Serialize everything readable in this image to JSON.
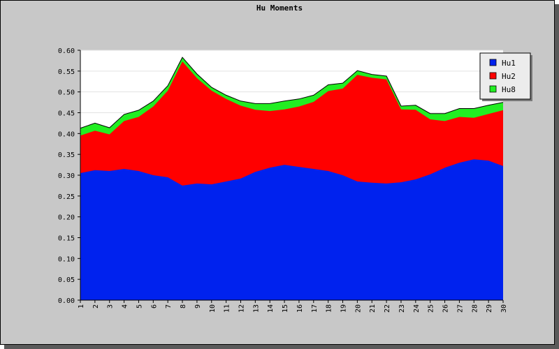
{
  "chart_data": {
    "type": "area",
    "stacked": true,
    "title": "Hu Moments",
    "xlabel": "",
    "ylabel": "",
    "x": [
      1,
      2,
      3,
      4,
      5,
      6,
      7,
      8,
      9,
      10,
      11,
      12,
      13,
      14,
      15,
      16,
      17,
      18,
      19,
      20,
      21,
      22,
      23,
      24,
      25,
      26,
      27,
      28,
      29,
      30
    ],
    "ylim": [
      0,
      0.6
    ],
    "yticks": [
      "0.00",
      "0.05",
      "0.10",
      "0.15",
      "0.20",
      "0.25",
      "0.30",
      "0.35",
      "0.40",
      "0.45",
      "0.50",
      "0.55",
      "0.60"
    ],
    "grid": true,
    "legend_position": "top-right",
    "series": [
      {
        "name": "Hu1",
        "color": "#0022ee",
        "values": [
          0.305,
          0.312,
          0.31,
          0.315,
          0.31,
          0.3,
          0.295,
          0.275,
          0.28,
          0.278,
          0.285,
          0.292,
          0.308,
          0.318,
          0.325,
          0.32,
          0.315,
          0.31,
          0.3,
          0.285,
          0.282,
          0.28,
          0.283,
          0.29,
          0.302,
          0.318,
          0.33,
          0.338,
          0.335,
          0.322
        ]
      },
      {
        "name": "Hu2",
        "color": "#ff0000",
        "values": [
          0.09,
          0.095,
          0.088,
          0.115,
          0.13,
          0.165,
          0.208,
          0.298,
          0.253,
          0.225,
          0.198,
          0.175,
          0.149,
          0.136,
          0.133,
          0.145,
          0.161,
          0.192,
          0.208,
          0.256,
          0.252,
          0.25,
          0.175,
          0.167,
          0.132,
          0.112,
          0.11,
          0.1,
          0.112,
          0.134
        ]
      },
      {
        "name": "Hu8",
        "color": "#22ee22",
        "values": [
          0.018,
          0.018,
          0.016,
          0.016,
          0.016,
          0.013,
          0.012,
          0.01,
          0.01,
          0.008,
          0.009,
          0.011,
          0.015,
          0.018,
          0.02,
          0.018,
          0.016,
          0.015,
          0.013,
          0.01,
          0.008,
          0.008,
          0.008,
          0.011,
          0.014,
          0.018,
          0.02,
          0.022,
          0.021,
          0.019
        ]
      }
    ]
  }
}
